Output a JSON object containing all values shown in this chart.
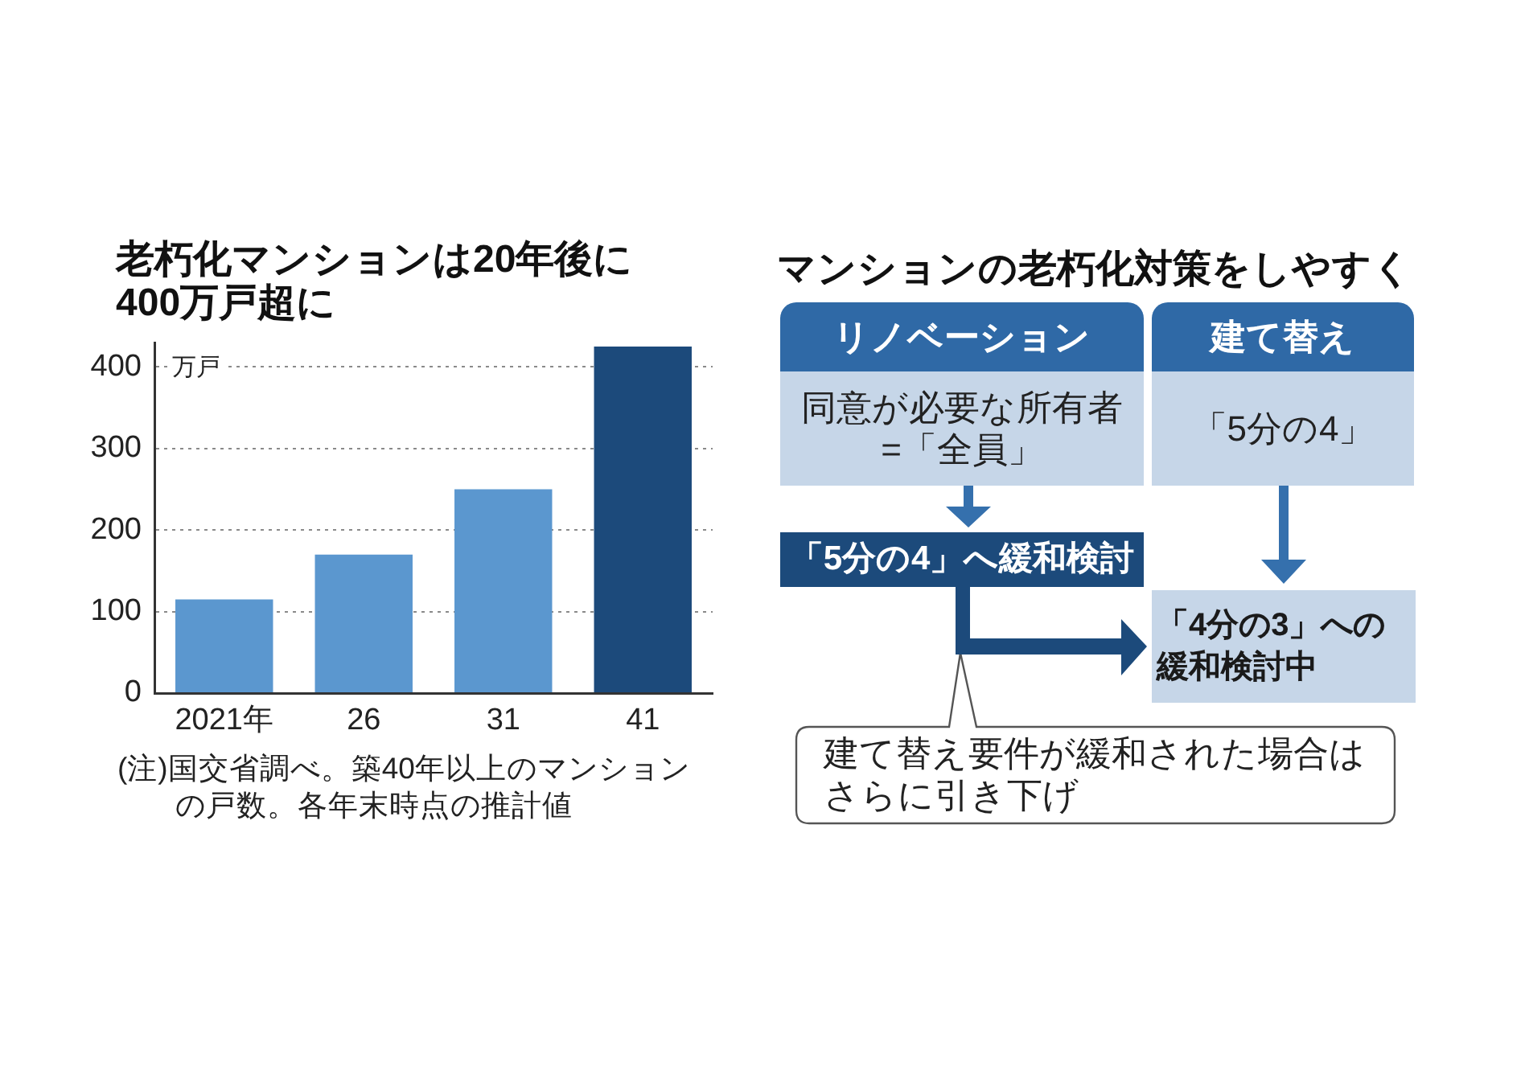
{
  "chart_data": [
    {
      "type": "bar",
      "title": "老朽化マンションは20年後に400万戸超に",
      "ylabel": "万戸",
      "categories": [
        "2021年",
        "26",
        "31",
        "41"
      ],
      "values": [
        115,
        170,
        250,
        425
      ],
      "colors": [
        "#5b97cf",
        "#5b97cf",
        "#5b97cf",
        "#1c4a7b"
      ],
      "ylim": [
        0,
        430
      ],
      "yticks": [
        0,
        100,
        200,
        300,
        400
      ],
      "grid": "y",
      "annotations": [
        "(注)国交省調べ。築40年以上のマンションの戸数。各年末時点の推計値"
      ]
    },
    {
      "type": "other",
      "title": "マンションの老朽化対策をしやすく",
      "annotations": [
        "リノベーション",
        "建て替え",
        "同意が必要な所有者=「全員」",
        "「5分の4」",
        "「5分の4」へ緩和検討",
        "「4分の3」への緩和検討中",
        "建て替え要件が緩和された場合はさらに引き下げ"
      ]
    }
  ]
}
